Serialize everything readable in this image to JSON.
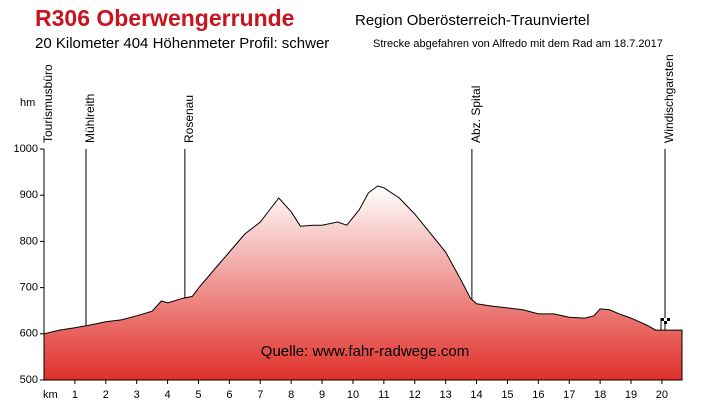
{
  "chart_data": {
    "type": "area",
    "title": "R306 Oberwengerrunde",
    "region": "Region Oberösterreich-Traunviertel",
    "stats": "20 Kilometer  404 Höhenmeter  Profil: schwer",
    "credit": "Strecke abgefahren von Alfredo mit dem Rad am 18.7.2017",
    "source": "Quelle: www.fahr-radwege.com",
    "x_label": "km",
    "y_label": "hm",
    "color": "#e0302a",
    "xlim": [
      0,
      20.65
    ],
    "ylim": [
      500,
      1000
    ],
    "xticks": [
      1,
      2,
      3,
      4,
      5,
      6,
      7,
      8,
      9,
      10,
      11,
      12,
      13,
      14,
      15,
      16,
      17,
      18,
      19,
      20
    ],
    "yticks": [
      500,
      600,
      700,
      800,
      900,
      1000
    ],
    "x": [
      0,
      0.5,
      1,
      1.5,
      2,
      2.5,
      3,
      3.5,
      3.8,
      4,
      4.5,
      4.8,
      5,
      5.5,
      6,
      6.5,
      7,
      7.3,
      7.6,
      8,
      8.3,
      8.7,
      9,
      9.5,
      9.8,
      10.2,
      10.5,
      10.8,
      11,
      11.5,
      12,
      12.5,
      13,
      13.5,
      13.8,
      14,
      14.5,
      15,
      15.5,
      16,
      16.5,
      17,
      17.5,
      17.8,
      18,
      18.3,
      18.7,
      19,
      19.5,
      19.8,
      20,
      20.65
    ],
    "y": [
      600,
      608,
      613,
      619,
      626,
      630,
      639,
      649,
      671,
      667,
      677,
      681,
      699,
      738,
      777,
      816,
      842,
      868,
      894,
      864,
      833,
      835,
      835,
      842,
      835,
      868,
      905,
      920,
      916,
      894,
      859,
      818,
      777,
      716,
      677,
      665,
      660,
      656,
      652,
      643,
      643,
      636,
      634,
      639,
      654,
      652,
      641,
      634,
      619,
      608,
      608,
      608
    ],
    "waypoints": [
      {
        "name": "Tourismusbüro",
        "km": 0
      },
      {
        "name": "Mühlreith",
        "km": 1.36
      },
      {
        "name": "Rosenau",
        "km": 4.56
      },
      {
        "name": "Abz. Spital",
        "km": 13.85
      },
      {
        "name": "Windischgarsten",
        "km": 20.1
      }
    ]
  }
}
